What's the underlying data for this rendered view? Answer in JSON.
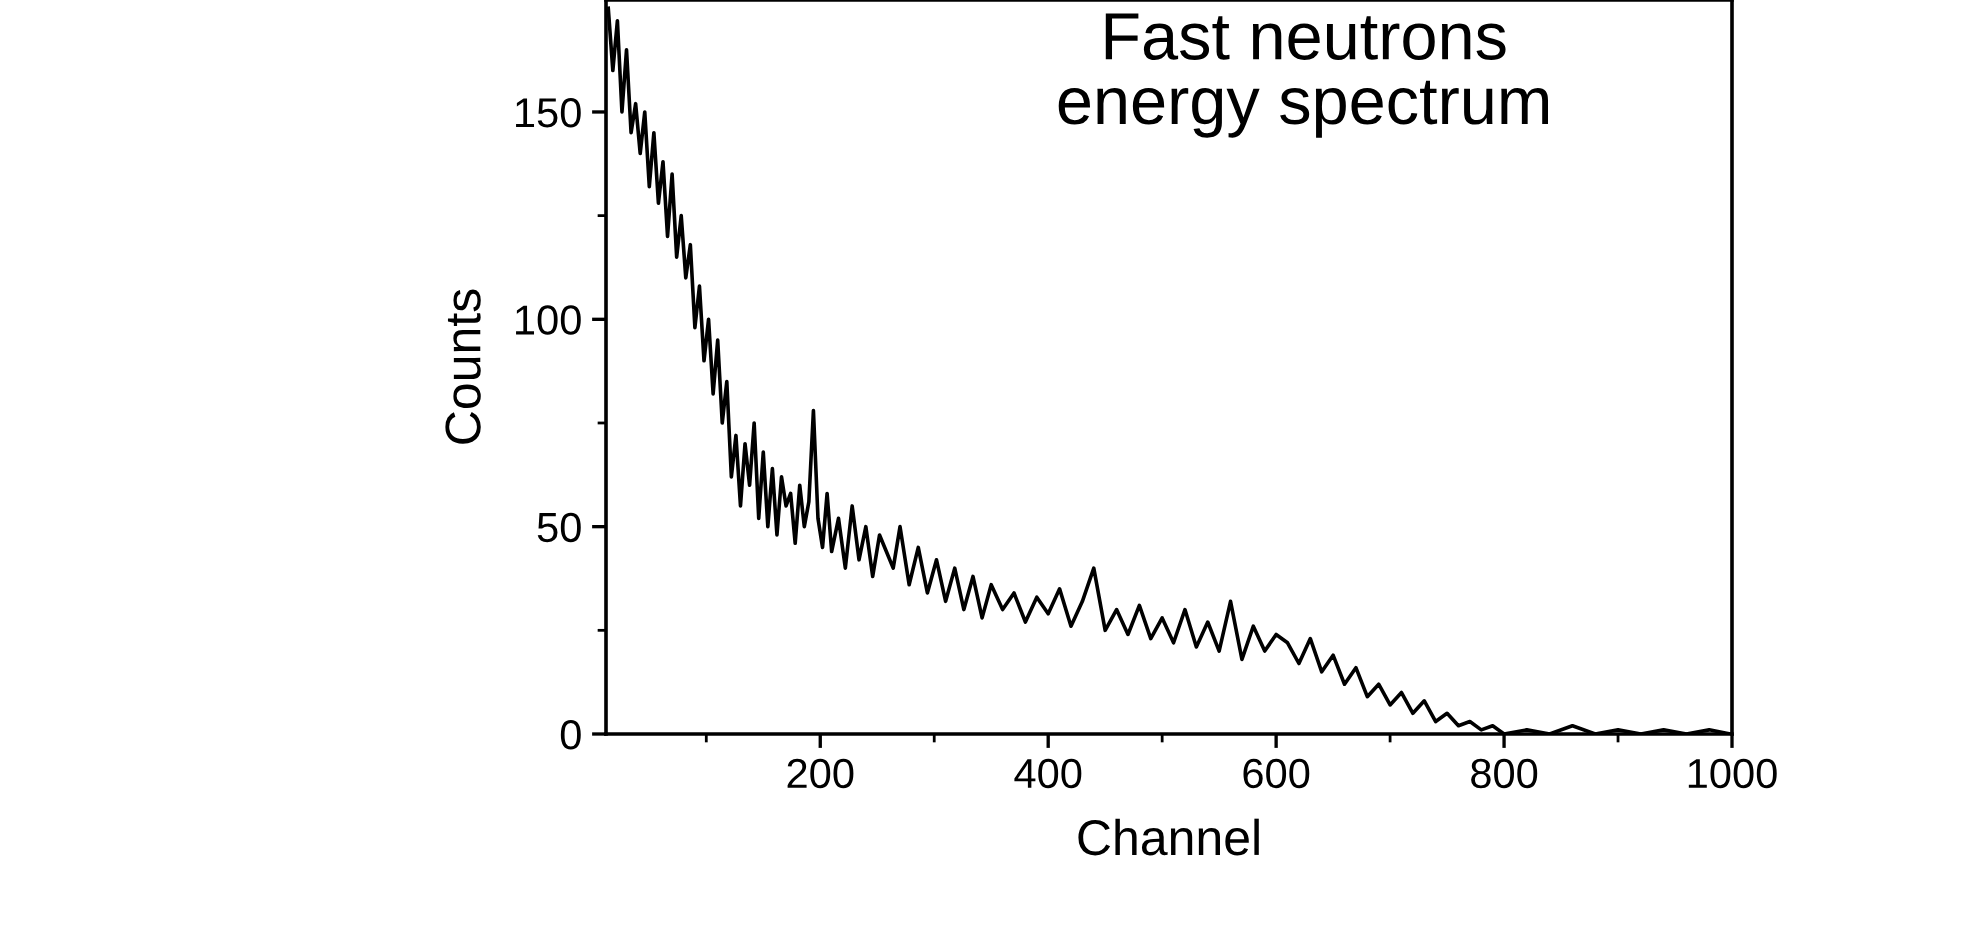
{
  "chart_data": {
    "type": "line",
    "title": "Fast neutrons\nenergy spectrum",
    "xlabel": "Channel",
    "ylabel": "Counts",
    "xlim": [
      12,
      1000
    ],
    "ylim": [
      0,
      177
    ],
    "xticks": [
      {
        "value": 100,
        "label": null
      },
      200,
      {
        "value": 300,
        "label": null
      },
      400,
      {
        "value": 500,
        "label": null
      },
      600,
      {
        "value": 700,
        "label": null
      },
      800,
      {
        "value": 900,
        "label": null
      },
      1000
    ],
    "yticks": [
      0,
      {
        "value": 25,
        "label": null
      },
      50,
      {
        "value": 75,
        "label": null
      },
      100,
      {
        "value": 125,
        "label": null
      },
      150
    ],
    "grid": false,
    "marker": "none",
    "line_style": "solid",
    "series": [
      {
        "color": "#000000",
        "x": [
          14,
          18,
          22,
          26,
          30,
          34,
          38,
          42,
          46,
          50,
          54,
          58,
          62,
          66,
          70,
          74,
          78,
          82,
          86,
          90,
          94,
          98,
          102,
          106,
          110,
          114,
          118,
          122,
          126,
          130,
          134,
          138,
          142,
          146,
          150,
          154,
          158,
          162,
          166,
          170,
          174,
          178,
          182,
          186,
          190,
          194,
          198,
          202,
          206,
          210,
          216,
          222,
          228,
          234,
          240,
          246,
          252,
          258,
          264,
          270,
          278,
          286,
          294,
          302,
          310,
          318,
          326,
          334,
          342,
          350,
          360,
          370,
          380,
          390,
          400,
          410,
          420,
          430,
          440,
          450,
          460,
          470,
          480,
          490,
          500,
          510,
          520,
          530,
          540,
          550,
          560,
          570,
          580,
          590,
          600,
          610,
          620,
          630,
          640,
          650,
          660,
          670,
          680,
          690,
          700,
          710,
          720,
          730,
          740,
          750,
          760,
          770,
          780,
          790,
          800,
          820,
          840,
          860,
          880,
          900,
          920,
          940,
          960,
          980,
          998
        ],
        "values": [
          175,
          160,
          172,
          150,
          165,
          145,
          152,
          140,
          150,
          132,
          145,
          128,
          138,
          120,
          135,
          115,
          125,
          110,
          118,
          98,
          108,
          90,
          100,
          82,
          95,
          75,
          85,
          62,
          72,
          55,
          70,
          60,
          75,
          52,
          68,
          50,
          64,
          48,
          62,
          55,
          58,
          46,
          60,
          50,
          56,
          78,
          52,
          45,
          58,
          44,
          52,
          40,
          55,
          42,
          50,
          38,
          48,
          44,
          40,
          50,
          36,
          45,
          34,
          42,
          32,
          40,
          30,
          38,
          28,
          36,
          30,
          34,
          27,
          33,
          29,
          35,
          26,
          32,
          40,
          25,
          30,
          24,
          31,
          23,
          28,
          22,
          30,
          21,
          27,
          20,
          32,
          18,
          26,
          20,
          24,
          22,
          17,
          23,
          15,
          19,
          12,
          16,
          9,
          12,
          7,
          10,
          5,
          8,
          3,
          5,
          2,
          3,
          1,
          2,
          0,
          1,
          0,
          2,
          0,
          1,
          0,
          1,
          0,
          1,
          0
        ]
      }
    ]
  }
}
